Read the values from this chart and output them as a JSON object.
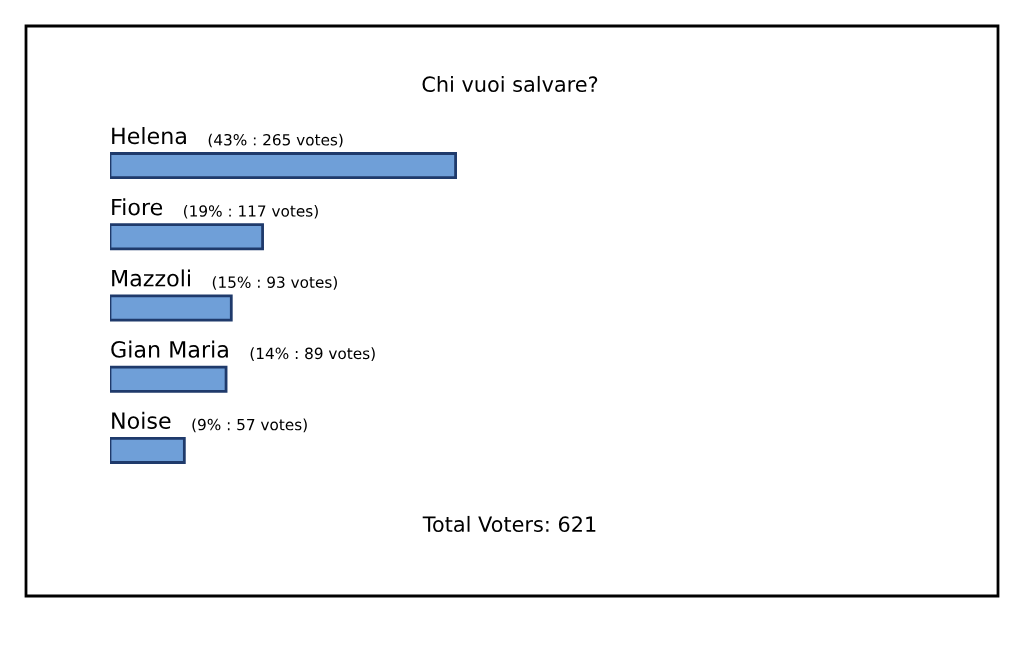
{
  "chart_data": {
    "type": "bar",
    "orientation": "horizontal",
    "title": "Chi vuoi salvare?",
    "categories": [
      "Helena",
      "Fiore",
      "Mazzoli",
      "Gian Maria",
      "Noise"
    ],
    "values": [
      265,
      117,
      93,
      89,
      57
    ],
    "value_labels": [
      "(43% : 265 votes)",
      "(19% : 117 votes)",
      "(15% : 93 votes)",
      "(14% : 89 votes)",
      "(9% : 57 votes)"
    ],
    "color": "#6f9fd8",
    "annotations": [
      "Total Voters: 621"
    ]
  }
}
